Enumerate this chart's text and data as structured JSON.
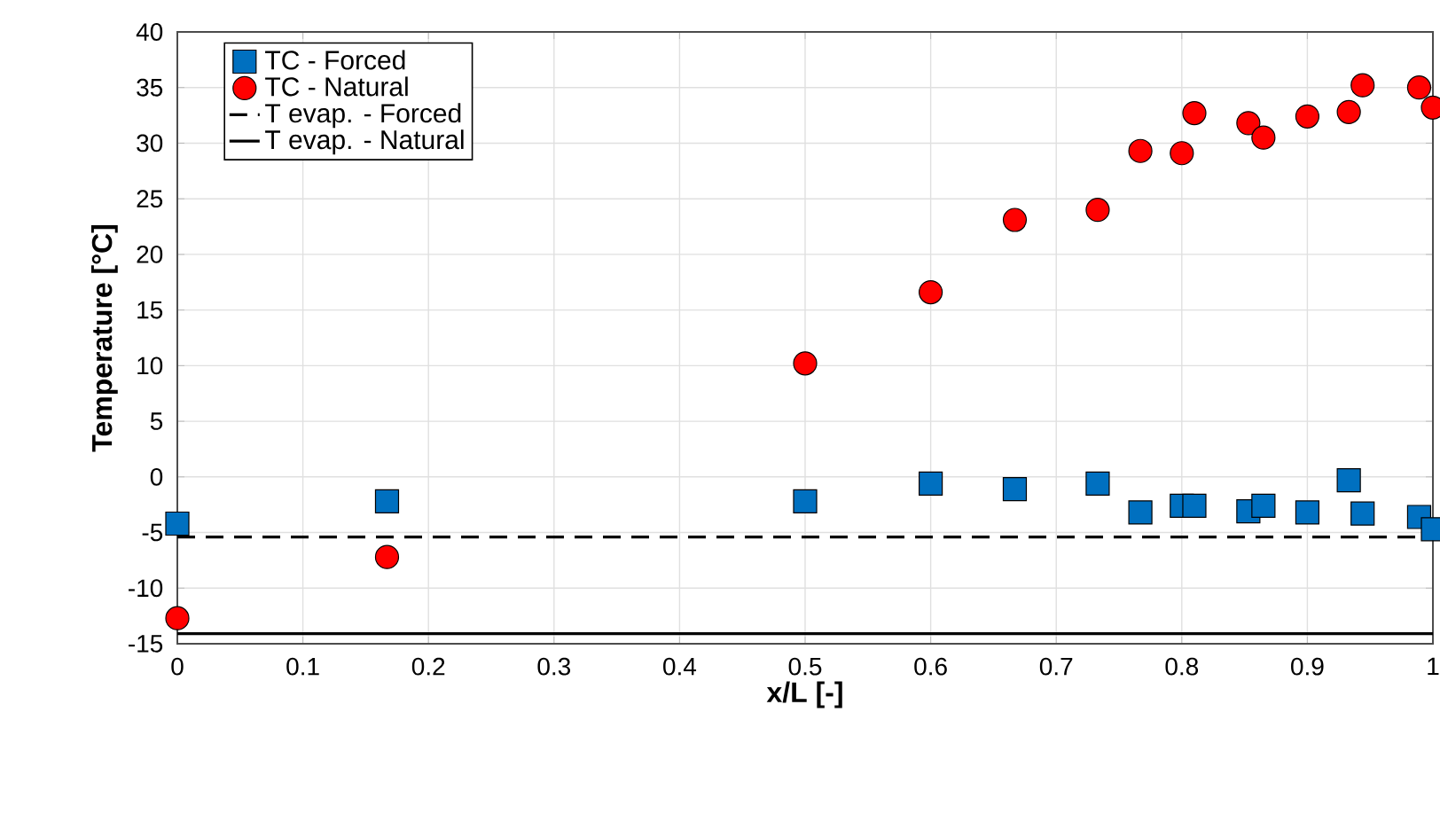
{
  "chart_data": {
    "type": "scatter",
    "xlabel": "x/L [-]",
    "ylabel": "Temperature [°C]",
    "xlim": [
      0,
      1
    ],
    "xticks": [
      0,
      0.1,
      0.2,
      0.3,
      0.4,
      0.5,
      0.6,
      0.7,
      0.8,
      0.9,
      1
    ],
    "ylim": [
      -15,
      40
    ],
    "yticks": [
      -15,
      -10,
      -5,
      0,
      5,
      10,
      15,
      20,
      25,
      30,
      35,
      40
    ],
    "grid": true,
    "legend": "top left",
    "series": [
      {
        "name": "TC - Forced",
        "color": "#0070c0",
        "marker": "square",
        "x": [
          0,
          0.167,
          0.5,
          0.6,
          0.667,
          0.733,
          0.767,
          0.8,
          0.81,
          0.853,
          0.865,
          0.9,
          0.933,
          0.944,
          0.989,
          1.0
        ],
        "values": [
          -4.2,
          -2.2,
          -2.2,
          -0.6,
          -1.1,
          -0.6,
          -3.2,
          -2.6,
          -2.6,
          -3.1,
          -2.6,
          -3.2,
          -0.3,
          -3.3,
          -3.6,
          -4.7
        ]
      },
      {
        "name": "TC - Natural",
        "color": "#ff0000",
        "marker": "circle",
        "x": [
          0,
          0.167,
          0.5,
          0.6,
          0.667,
          0.733,
          0.767,
          0.8,
          0.81,
          0.853,
          0.865,
          0.9,
          0.933,
          0.944,
          0.989,
          1.0
        ],
        "values": [
          -12.7,
          -7.2,
          10.2,
          16.6,
          23.1,
          24.0,
          29.3,
          29.1,
          32.7,
          31.8,
          30.5,
          32.4,
          32.8,
          35.2,
          35.0,
          33.2
        ]
      }
    ],
    "ref_lines": [
      {
        "axis": "y",
        "value": -5.4,
        "label": "T evap. - Forced",
        "color": "#000000",
        "line_style": "dashed"
      },
      {
        "axis": "y",
        "value": -14.1,
        "label": "T evap. - Natural",
        "color": "#000000",
        "line_style": "solid"
      }
    ]
  }
}
